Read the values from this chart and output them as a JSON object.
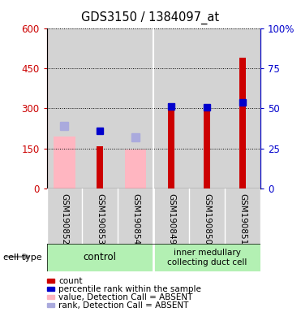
{
  "title": "GDS3150 / 1384097_at",
  "samples": [
    "GSM190852",
    "GSM190853",
    "GSM190854",
    "GSM190849",
    "GSM190850",
    "GSM190851"
  ],
  "count_values": [
    null,
    160,
    null,
    320,
    298,
    490
  ],
  "count_color": "#cc0000",
  "percentile_values": [
    null,
    215,
    null,
    308,
    305,
    323
  ],
  "percentile_color": "#0000cc",
  "value_absent": [
    195,
    null,
    148,
    null,
    null,
    null
  ],
  "value_absent_color": "#ffb6c1",
  "rank_absent": [
    235,
    null,
    193,
    null,
    null,
    null
  ],
  "rank_absent_color": "#aaaadd",
  "ylim_left": [
    0,
    600
  ],
  "ylim_right": [
    0,
    100
  ],
  "yticks_left": [
    0,
    150,
    300,
    450,
    600
  ],
  "yticks_right": [
    0,
    25,
    50,
    75,
    100
  ],
  "left_axis_color": "#cc0000",
  "right_axis_color": "#0000cc",
  "cell_type_label": "cell type",
  "control_label": "control",
  "inner_label": "inner medullary\ncollecting duct cell",
  "group_color": "#b3f0b3",
  "sample_bg_color": "#d3d3d3",
  "legend_items": [
    {
      "label": "count",
      "color": "#cc0000"
    },
    {
      "label": "percentile rank within the sample",
      "color": "#0000cc"
    },
    {
      "label": "value, Detection Call = ABSENT",
      "color": "#ffb6c1"
    },
    {
      "label": "rank, Detection Call = ABSENT",
      "color": "#aaaadd"
    }
  ]
}
